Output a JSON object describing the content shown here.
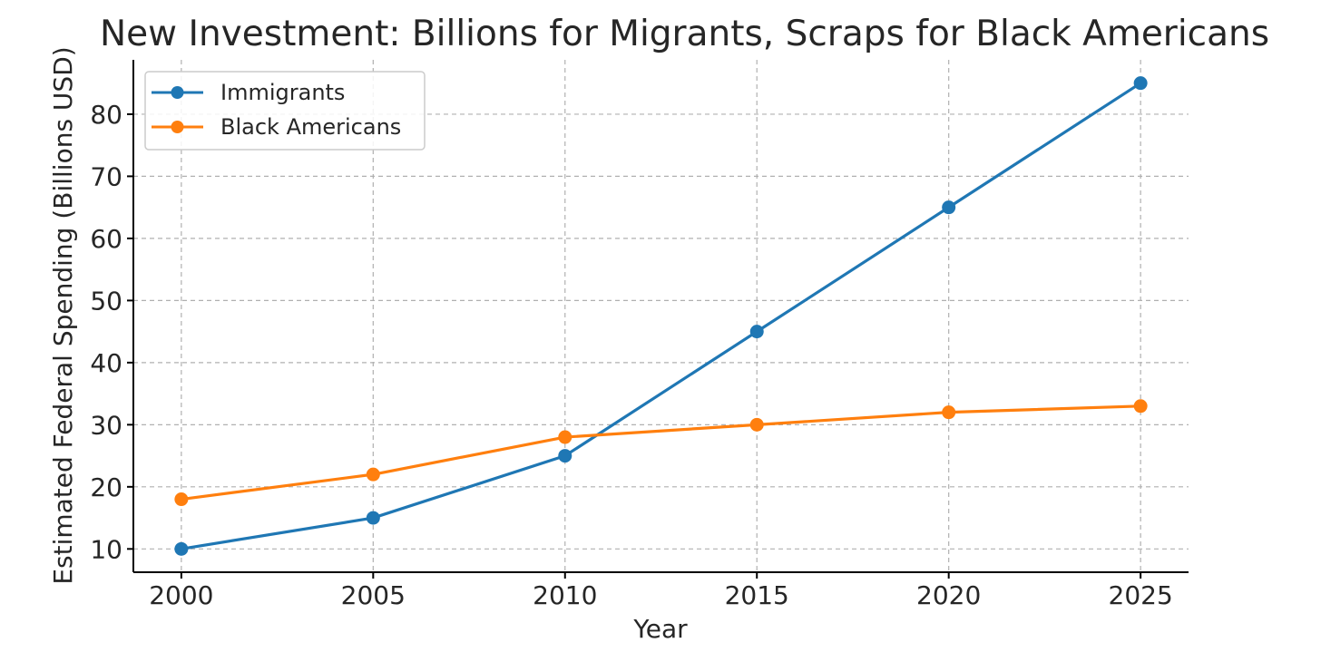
{
  "chart_data": {
    "type": "line",
    "title": "New Investment: Billions for Migrants, Scraps for Black Americans",
    "xlabel": "Year",
    "ylabel": "Estimated Federal Spending (Billions USD)",
    "x": [
      2000,
      2005,
      2010,
      2015,
      2020,
      2025
    ],
    "x_tick_labels": [
      "2000",
      "2005",
      "2010",
      "2015",
      "2020",
      "2025"
    ],
    "y_ticks": [
      10,
      20,
      30,
      40,
      50,
      60,
      70,
      80
    ],
    "y_tick_labels": [
      "10",
      "20",
      "30",
      "40",
      "50",
      "60",
      "70",
      "80"
    ],
    "xlim": [
      1998.75,
      2026.25
    ],
    "ylim": [
      6.25,
      88.75
    ],
    "grid": true,
    "legend_position": "top-left",
    "series": [
      {
        "name": "Immigrants",
        "color": "#1f77b4",
        "values": [
          10,
          15,
          25,
          45,
          65,
          85
        ]
      },
      {
        "name": "Black Americans",
        "color": "#ff7f0e",
        "values": [
          18,
          22,
          28,
          30,
          32,
          33
        ]
      }
    ]
  }
}
